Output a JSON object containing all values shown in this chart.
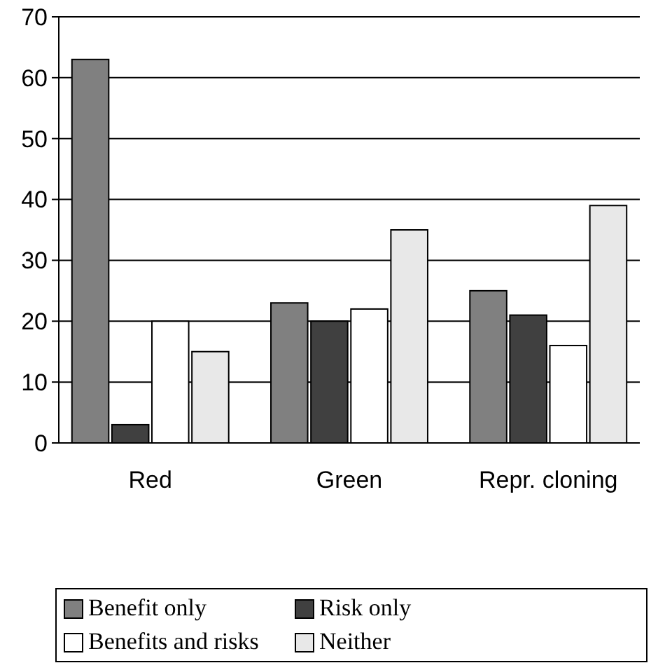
{
  "chart_data": {
    "type": "bar",
    "categories": [
      "Red",
      "Green",
      "Repr. cloning"
    ],
    "series": [
      {
        "name": "Benefit only",
        "color": "#808080",
        "values": [
          63,
          23,
          25
        ]
      },
      {
        "name": "Risk only",
        "color": "#404040",
        "values": [
          3,
          20,
          21
        ]
      },
      {
        "name": "Benefits and risks",
        "color": "#ffffff",
        "values": [
          20,
          22,
          16
        ]
      },
      {
        "name": "Neither",
        "color": "#e8e8e8",
        "values": [
          15,
          35,
          39
        ]
      }
    ],
    "ylim": [
      0,
      70
    ],
    "yticks": [
      0,
      10,
      20,
      30,
      40,
      50,
      60,
      70
    ],
    "grid": "y",
    "legend": "bottom"
  }
}
